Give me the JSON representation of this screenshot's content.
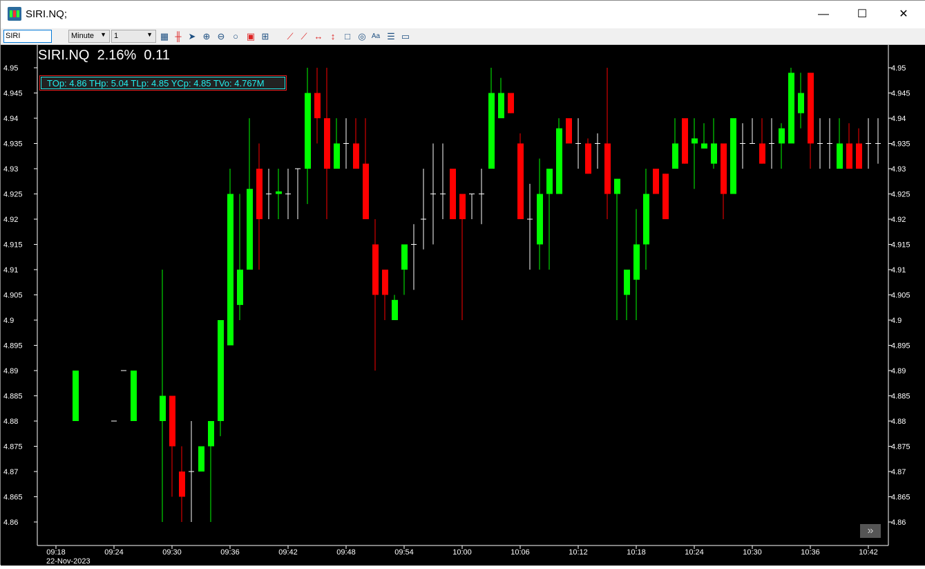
{
  "window": {
    "title": "SIRI.NQ;",
    "minimize": "—",
    "maximize": "☐",
    "close": "✕"
  },
  "toolbar": {
    "symbol_value": "SIRI",
    "interval_unit": "Minute",
    "interval_value": "1",
    "icons": [
      "calculator-icon",
      "candlestick-icon",
      "pointer-icon",
      "zoom-in-icon",
      "zoom-out-icon",
      "zoom-fit-icon",
      "chart-style-icon",
      "add-icon",
      "line-segment-icon",
      "ray-icon",
      "horizontal-line-icon",
      "vertical-line-icon",
      "rectangle-icon",
      "ellipse-icon",
      "text-icon",
      "fibonacci-icon",
      "measure-icon"
    ]
  },
  "header": {
    "symbol": "SIRI.NQ",
    "change_pct": "2.16%",
    "change": "0.11"
  },
  "info": "TOp: 4.86 THp: 5.04 TLp: 4.85 YCp: 4.85 TVo: 4.767M",
  "colors": {
    "up": "#00ff00",
    "down": "#ff0000",
    "doji": "#ffffff",
    "background": "#000000",
    "info_text": "#22eeee"
  },
  "chart_data": {
    "type": "candlestick",
    "date": "22-Nov-2023",
    "ylim": [
      4.855,
      4.95
    ],
    "yticks": [
      "4.95",
      "4.945",
      "4.94",
      "4.935",
      "4.93",
      "4.925",
      "4.92",
      "4.915",
      "4.91",
      "4.905",
      "4.9",
      "4.895",
      "4.89",
      "4.885",
      "4.88",
      "4.875",
      "4.87",
      "4.865",
      "4.86"
    ],
    "xticks": [
      "09:18",
      "09:24",
      "09:30",
      "09:36",
      "09:42",
      "09:48",
      "09:54",
      "10:00",
      "10:06",
      "10:12",
      "10:18",
      "10:24",
      "10:30",
      "10:36",
      "10:42"
    ],
    "columns": [
      "time",
      "open",
      "high",
      "low",
      "close"
    ],
    "candles": [
      [
        "09:20",
        4.88,
        4.89,
        4.88,
        4.89
      ],
      [
        "09:24",
        4.88,
        4.88,
        4.88,
        4.88
      ],
      [
        "09:25",
        4.89,
        4.89,
        4.89,
        4.89
      ],
      [
        "09:26",
        4.88,
        4.89,
        4.88,
        4.89
      ],
      [
        "09:29",
        4.88,
        4.91,
        4.86,
        4.885
      ],
      [
        "09:30",
        4.885,
        4.885,
        4.865,
        4.875
      ],
      [
        "09:31",
        4.87,
        4.875,
        4.86,
        4.865
      ],
      [
        "09:32",
        4.87,
        4.88,
        4.86,
        4.87
      ],
      [
        "09:33",
        4.87,
        4.875,
        4.87,
        4.875
      ],
      [
        "09:34",
        4.875,
        4.88,
        4.86,
        4.88
      ],
      [
        "09:35",
        4.88,
        4.9,
        4.877,
        4.9
      ],
      [
        "09:36",
        4.895,
        4.93,
        4.895,
        4.925
      ],
      [
        "09:37",
        4.903,
        4.925,
        4.9,
        4.91
      ],
      [
        "09:38",
        4.91,
        4.94,
        4.91,
        4.926
      ],
      [
        "09:39",
        4.93,
        4.935,
        4.91,
        4.92
      ],
      [
        "09:40",
        4.925,
        4.93,
        4.92,
        4.925
      ],
      [
        "09:41",
        4.925,
        4.93,
        4.92,
        4.9255
      ],
      [
        "09:42",
        4.925,
        4.93,
        4.92,
        4.925
      ],
      [
        "09:43",
        4.93,
        4.93,
        4.92,
        4.93
      ],
      [
        "09:44",
        4.93,
        4.95,
        4.923,
        4.945
      ],
      [
        "09:45",
        4.945,
        4.95,
        4.935,
        4.94
      ],
      [
        "09:46",
        4.94,
        4.95,
        4.92,
        4.93
      ],
      [
        "09:47",
        4.93,
        4.94,
        4.93,
        4.935
      ],
      [
        "09:48",
        4.935,
        4.94,
        4.93,
        4.935
      ],
      [
        "09:49",
        4.935,
        4.94,
        4.93,
        4.93
      ],
      [
        "09:50",
        4.931,
        4.94,
        4.92,
        4.92
      ],
      [
        "09:51",
        4.915,
        4.92,
        4.89,
        4.905
      ],
      [
        "09:52",
        4.91,
        4.91,
        4.9,
        4.905
      ],
      [
        "09:53",
        4.9,
        4.905,
        4.9,
        4.904
      ],
      [
        "09:54",
        4.91,
        4.915,
        4.905,
        4.915
      ],
      [
        "09:55",
        4.915,
        4.919,
        4.906,
        4.915
      ],
      [
        "09:56",
        4.92,
        4.93,
        4.914,
        4.92
      ],
      [
        "09:57",
        4.925,
        4.935,
        4.915,
        4.925
      ],
      [
        "09:58",
        4.925,
        4.935,
        4.92,
        4.925
      ],
      [
        "09:59",
        4.93,
        4.93,
        4.92,
        4.92
      ],
      [
        "10:00",
        4.925,
        4.925,
        4.9,
        4.92
      ],
      [
        "10:01",
        4.925,
        4.925,
        4.92,
        4.925
      ],
      [
        "10:02",
        4.925,
        4.93,
        4.919,
        4.925
      ],
      [
        "10:03",
        4.93,
        4.95,
        4.93,
        4.945
      ],
      [
        "10:04",
        4.94,
        4.948,
        4.94,
        4.945
      ],
      [
        "10:05",
        4.945,
        4.945,
        4.941,
        4.941
      ],
      [
        "10:06",
        4.935,
        4.937,
        4.92,
        4.92
      ],
      [
        "10:07",
        4.92,
        4.927,
        4.91,
        4.92
      ],
      [
        "10:08",
        4.915,
        4.932,
        4.91,
        4.925
      ],
      [
        "10:09",
        4.925,
        4.93,
        4.91,
        4.93
      ],
      [
        "10:10",
        4.925,
        4.94,
        4.925,
        4.938
      ],
      [
        "10:11",
        4.94,
        4.94,
        4.935,
        4.935
      ],
      [
        "10:12",
        4.935,
        4.94,
        4.93,
        4.935
      ],
      [
        "10:13",
        4.935,
        4.936,
        4.929,
        4.929
      ],
      [
        "10:14",
        4.935,
        4.937,
        4.93,
        4.935
      ],
      [
        "10:15",
        4.935,
        4.95,
        4.92,
        4.925
      ],
      [
        "10:16",
        4.925,
        4.928,
        4.9,
        4.928
      ],
      [
        "10:17",
        4.905,
        4.91,
        4.9,
        4.91
      ],
      [
        "10:18",
        4.908,
        4.922,
        4.9,
        4.915
      ],
      [
        "10:19",
        4.915,
        4.93,
        4.91,
        4.925
      ],
      [
        "10:20",
        4.93,
        4.93,
        4.925,
        4.925
      ],
      [
        "10:21",
        4.929,
        4.929,
        4.92,
        4.92
      ],
      [
        "10:22",
        4.93,
        4.94,
        4.93,
        4.935
      ],
      [
        "10:23",
        4.94,
        4.94,
        4.931,
        4.931
      ],
      [
        "10:24",
        4.935,
        4.94,
        4.926,
        4.936
      ],
      [
        "10:25",
        4.934,
        4.939,
        4.934,
        4.935
      ],
      [
        "10:26",
        4.931,
        4.94,
        4.93,
        4.935
      ],
      [
        "10:27",
        4.935,
        4.935,
        4.92,
        4.925
      ],
      [
        "10:28",
        4.925,
        4.94,
        4.925,
        4.94
      ],
      [
        "10:29",
        4.935,
        4.939,
        4.93,
        4.935
      ],
      [
        "10:30",
        4.935,
        4.94,
        4.935,
        4.935
      ],
      [
        "10:31",
        4.935,
        4.94,
        4.931,
        4.931
      ],
      [
        "10:32",
        4.935,
        4.94,
        4.93,
        4.935
      ],
      [
        "10:33",
        4.935,
        4.939,
        4.93,
        4.938
      ],
      [
        "10:34",
        4.935,
        4.95,
        4.935,
        4.949
      ],
      [
        "10:35",
        4.941,
        4.949,
        4.938,
        4.945
      ],
      [
        "10:36",
        4.949,
        4.949,
        4.93,
        4.935
      ],
      [
        "10:37",
        4.935,
        4.94,
        4.93,
        4.935
      ],
      [
        "10:38",
        4.935,
        4.94,
        4.93,
        4.935
      ],
      [
        "10:39",
        4.93,
        4.94,
        4.93,
        4.935
      ],
      [
        "10:40",
        4.935,
        4.939,
        4.93,
        4.93
      ],
      [
        "10:41",
        4.935,
        4.938,
        4.93,
        4.93
      ],
      [
        "10:42",
        4.935,
        4.94,
        4.93,
        4.935
      ],
      [
        "10:43",
        4.935,
        4.94,
        4.931,
        4.935
      ]
    ]
  }
}
